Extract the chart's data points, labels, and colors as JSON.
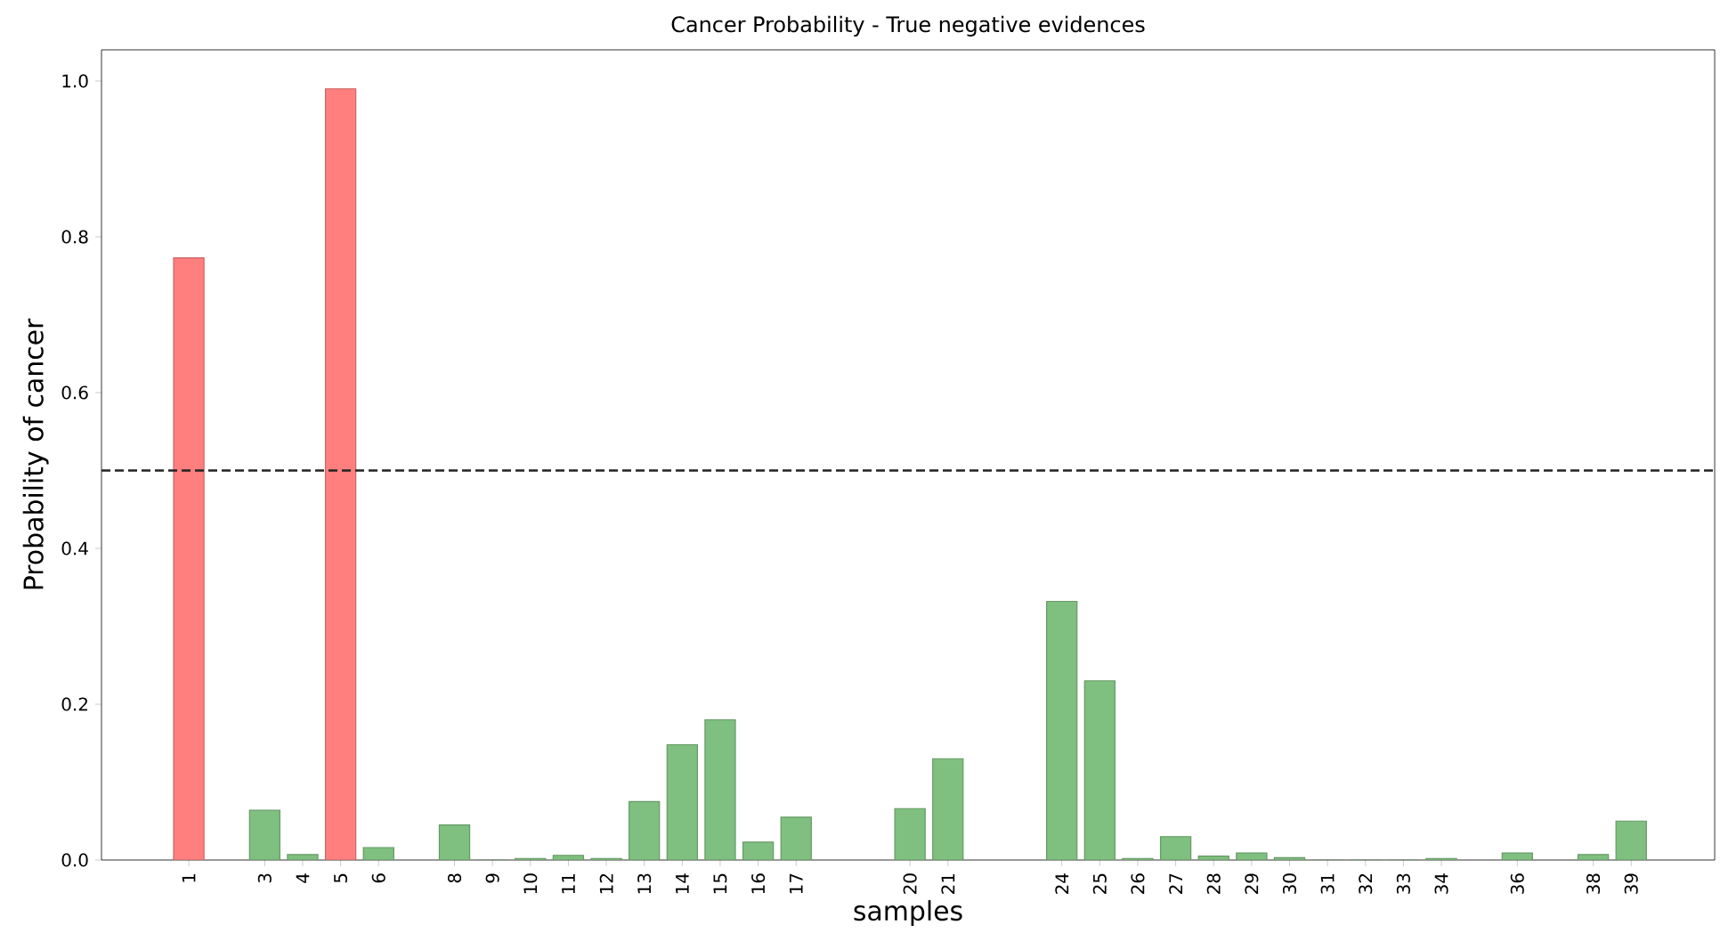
{
  "chart_data": {
    "type": "bar",
    "title": "Cancer Probability - True negative evidences",
    "xlabel": "samples",
    "ylabel": "Probability of cancer",
    "x": [
      1,
      3,
      4,
      5,
      6,
      8,
      9,
      10,
      11,
      12,
      13,
      14,
      15,
      16,
      17,
      20,
      21,
      24,
      25,
      26,
      27,
      28,
      29,
      30,
      31,
      32,
      33,
      34,
      36,
      38,
      39
    ],
    "values": [
      0.773,
      0.064,
      0.007,
      0.99,
      0.016,
      0.045,
      0.0,
      0.002,
      0.006,
      0.002,
      0.075,
      0.148,
      0.18,
      0.023,
      0.055,
      0.066,
      0.13,
      0.332,
      0.23,
      0.002,
      0.03,
      0.005,
      0.009,
      0.003,
      0.0,
      0.0,
      0.0,
      0.002,
      0.009,
      0.007,
      0.05
    ],
    "colors": [
      "#ff7f7f",
      "#7fbf7f",
      "#7fbf7f",
      "#ff7f7f",
      "#7fbf7f",
      "#7fbf7f",
      "#7fbf7f",
      "#7fbf7f",
      "#7fbf7f",
      "#7fbf7f",
      "#7fbf7f",
      "#7fbf7f",
      "#7fbf7f",
      "#7fbf7f",
      "#7fbf7f",
      "#7fbf7f",
      "#7fbf7f",
      "#7fbf7f",
      "#7fbf7f",
      "#7fbf7f",
      "#7fbf7f",
      "#7fbf7f",
      "#7fbf7f",
      "#7fbf7f",
      "#7fbf7f",
      "#7fbf7f",
      "#7fbf7f",
      "#7fbf7f",
      "#7fbf7f",
      "#7fbf7f",
      "#7fbf7f"
    ],
    "xlim": [
      -1.3,
      41.2
    ],
    "ylim": [
      0,
      1.04
    ],
    "xticks": [
      1,
      3,
      4,
      5,
      6,
      8,
      9,
      10,
      11,
      12,
      13,
      14,
      15,
      16,
      17,
      20,
      21,
      24,
      25,
      26,
      27,
      28,
      29,
      30,
      31,
      32,
      33,
      34,
      36,
      38,
      39
    ],
    "yticks": [
      {
        "value": 0,
        "label": "0.0"
      },
      {
        "value": 0.2,
        "label": "0.2"
      },
      {
        "value": 0.4,
        "label": "0.4"
      },
      {
        "value": 0.6,
        "label": "0.6"
      },
      {
        "value": 0.8,
        "label": "0.8"
      },
      {
        "value": 1.0,
        "label": "1.0"
      }
    ],
    "ref_lines": [
      {
        "axis": "y",
        "value": 0.5,
        "color": "#222222",
        "line_style": "dashed"
      }
    ]
  }
}
